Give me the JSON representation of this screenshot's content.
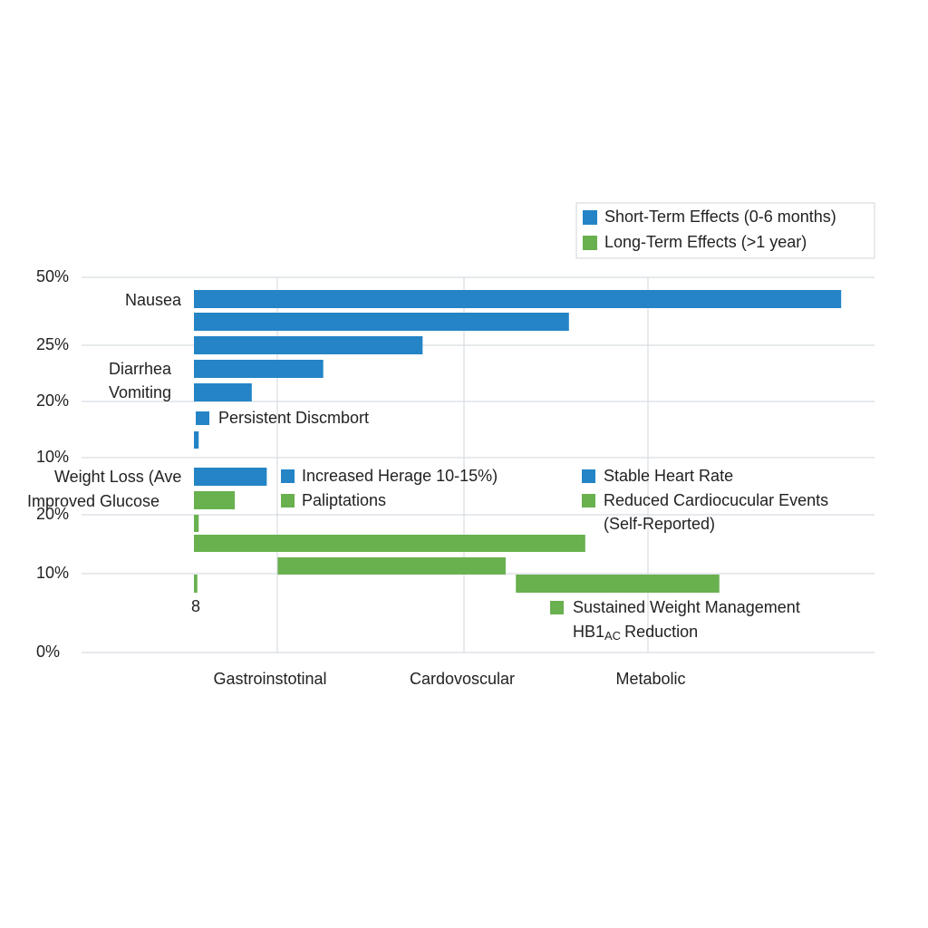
{
  "chart_data": {
    "type": "bar",
    "orientation": "horizontal",
    "xlim": [
      0,
      100
    ],
    "legend": {
      "position": "upper right"
    },
    "series": [
      {
        "name": "Short-Term Effects (0-6 months)",
        "color": "#2484c6"
      },
      {
        "name": "Long-Term Effects (>1 year)",
        "color": "#69b04f"
      }
    ],
    "y_labels": [
      "50%",
      "25%",
      "20%",
      "10%",
      "20%",
      "10%",
      "0%"
    ],
    "categories": [
      "Gastroinstotinal",
      "Cardovoscular",
      "Metabolic"
    ],
    "bars": [
      {
        "series": 0,
        "start": 0,
        "end": 95.1
      },
      {
        "series": 0,
        "start": 0,
        "end": 55.1
      },
      {
        "series": 0,
        "start": 0,
        "end": 33.6
      },
      {
        "series": 0,
        "start": 0,
        "end": 19.0
      },
      {
        "series": 0,
        "start": 0,
        "end": 8.5
      },
      {
        "series": 0,
        "start": 0,
        "end": 0.7
      },
      {
        "series": 0,
        "start": 0,
        "end": 10.7
      },
      {
        "series": 1,
        "start": 0,
        "end": 6.0
      },
      {
        "series": 1,
        "start": 0,
        "end": 0.7
      },
      {
        "series": 1,
        "start": 0,
        "end": 57.5
      },
      {
        "series": 1,
        "start": 12.3,
        "end": 45.8
      },
      {
        "series": 1,
        "start": 47.3,
        "end": 77.2
      },
      {
        "series": 1,
        "start": 0,
        "end": 0.5
      }
    ],
    "annotations": [
      {
        "text": "Nausea"
      },
      {
        "text": "Diarrhea"
      },
      {
        "text": "Vomiting"
      },
      {
        "text": "Persistent Discmbort",
        "series": 0
      },
      {
        "text": "Weight Loss (Ave"
      },
      {
        "text": "Improved Glucose"
      },
      {
        "text": "Increased Herage 10-15%)",
        "series": 0
      },
      {
        "text": "Stable Heart Rate",
        "series": 0
      },
      {
        "text": "Paliptations",
        "series": 1
      },
      {
        "text": "Reduced Cardiocucular Events",
        "series": 1
      },
      {
        "text": "(Self-Reported)"
      },
      {
        "text": "8"
      },
      {
        "text": "Sustained Weight Management",
        "series": 1
      },
      {
        "text": "HB1",
        "subscript": "AC",
        "after": "Reduction"
      }
    ]
  }
}
